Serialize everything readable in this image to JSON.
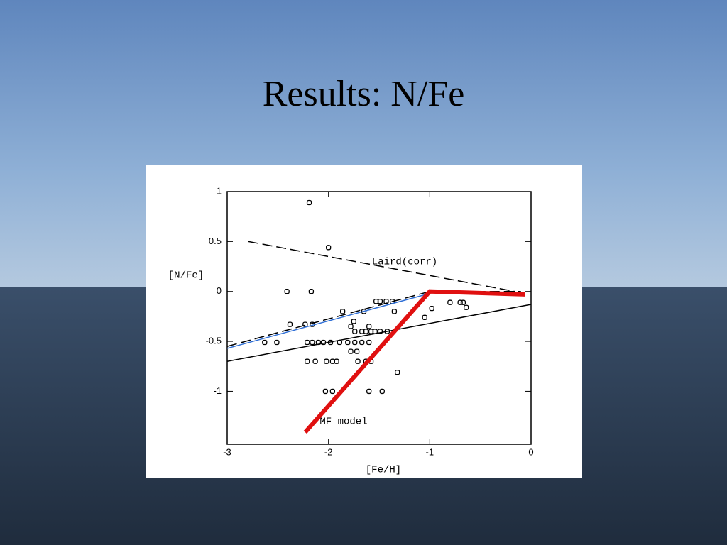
{
  "chart_data": {
    "type": "scatter",
    "title": "Results: N/Fe",
    "x_label": "[Fe/H]",
    "y_label": "[N/Fe]",
    "annotations": [
      "Laird(corr)",
      "MF model"
    ],
    "xlim": [
      -3,
      0
    ],
    "ylim": [
      -1.53,
      1.0
    ],
    "xticks": [
      -3,
      -2,
      -1,
      0
    ],
    "yticks": [
      1,
      0.5,
      0,
      -0.5,
      -1
    ],
    "series": [
      {
        "type": "scatter",
        "color": "#000000",
        "x": [
          -2.19,
          -2.0,
          -2.41,
          -2.17,
          -2.63,
          -2.51,
          -2.38,
          -2.23,
          -2.16,
          -2.21,
          -2.16,
          -2.1,
          -2.05,
          -1.98,
          -1.89,
          -1.81,
          -1.74,
          -1.67,
          -1.6,
          -2.21,
          -2.13,
          -2.02,
          -1.96,
          -1.92,
          -1.71,
          -1.63,
          -1.58,
          -1.74,
          -1.67,
          -1.63,
          -1.58,
          -1.54,
          -1.49,
          -1.42,
          -1.78,
          -1.72,
          -1.78,
          -1.6,
          -1.86,
          -1.65,
          -1.35,
          -1.53,
          -1.49,
          -1.43,
          -1.37,
          -2.03,
          -1.96,
          -1.6,
          -1.47,
          -1.32,
          -1.75,
          -1.05,
          -0.98,
          -0.8,
          -0.7,
          -0.64,
          -0.67
        ],
        "y": [
          0.89,
          0.44,
          0.0,
          0.0,
          -0.51,
          -0.51,
          -0.33,
          -0.33,
          -0.33,
          -0.51,
          -0.51,
          -0.51,
          -0.51,
          -0.51,
          -0.51,
          -0.51,
          -0.51,
          -0.51,
          -0.51,
          -0.7,
          -0.7,
          -0.7,
          -0.7,
          -0.7,
          -0.7,
          -0.7,
          -0.7,
          -0.4,
          -0.4,
          -0.4,
          -0.4,
          -0.4,
          -0.4,
          -0.4,
          -0.6,
          -0.6,
          -0.35,
          -0.35,
          -0.2,
          -0.2,
          -0.2,
          -0.1,
          -0.1,
          -0.1,
          -0.1,
          -1.0,
          -1.0,
          -1.0,
          -1.0,
          -0.81,
          -0.3,
          -0.26,
          -0.17,
          -0.11,
          -0.11,
          -0.16,
          -0.11
        ]
      },
      {
        "type": "line",
        "color": "#000000",
        "line_style": "dashed",
        "x": [
          -2.79,
          -0.16
        ],
        "y": [
          0.5,
          0.0
        ]
      },
      {
        "type": "line",
        "color": "#000000",
        "line_style": "solid",
        "x": [
          -3,
          0
        ],
        "y": [
          -0.7,
          -0.13
        ]
      },
      {
        "type": "line",
        "color": "#000000",
        "line_style": "dashed",
        "x": [
          -3,
          -1,
          -0.1
        ],
        "y": [
          -0.55,
          0.0,
          0.0
        ]
      },
      {
        "type": "line",
        "color": "#2f6fd6",
        "line_style": "solid",
        "x": [
          -3,
          -1
        ],
        "y": [
          -0.57,
          -0.02
        ]
      },
      {
        "type": "line",
        "color": "#e01010",
        "line_style": "thick",
        "x": [
          -2.23,
          -1.0,
          -0.06
        ],
        "y": [
          -1.41,
          0.0,
          -0.03
        ]
      }
    ]
  }
}
